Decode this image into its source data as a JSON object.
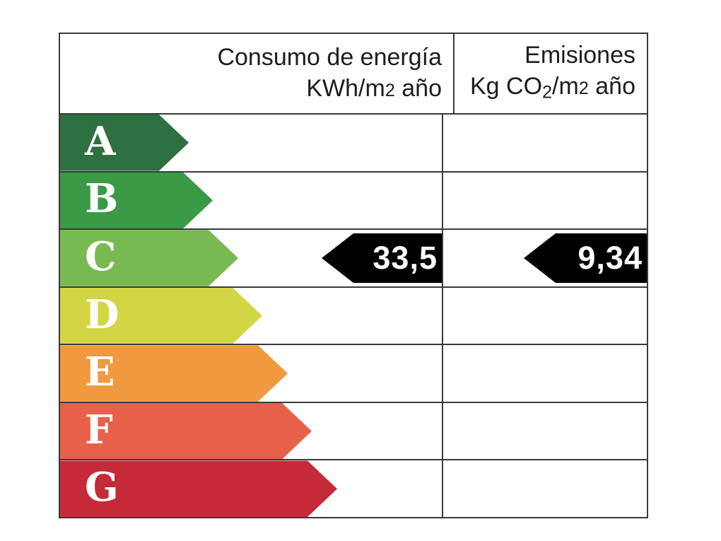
{
  "table": {
    "border_color": "#3a3a3a",
    "header": {
      "energy_col": {
        "title": "Consumo de energía",
        "unit_prefix": "KWh/m",
        "unit_sup": "2",
        "unit_suffix": " año"
      },
      "emissions_col": {
        "title": "Emisiones",
        "unit_prefix": "Kg CO",
        "unit_sub": "2",
        "unit_mid": "/m",
        "unit_sup": "2",
        "unit_suffix": " año"
      }
    },
    "ratings": [
      {
        "letter": "A",
        "color": "#2e7040",
        "arrow_width": 182
      },
      {
        "letter": "B",
        "color": "#3a9a46",
        "arrow_width": 216
      },
      {
        "letter": "C",
        "color": "#79b951",
        "arrow_width": 252
      },
      {
        "letter": "D",
        "color": "#d4d545",
        "arrow_width": 286
      },
      {
        "letter": "E",
        "color": "#f0993f",
        "arrow_width": 322
      },
      {
        "letter": "F",
        "color": "#e7604a",
        "arrow_width": 356
      },
      {
        "letter": "G",
        "color": "#c52a38",
        "arrow_width": 392
      }
    ],
    "values": {
      "rating_letter": "C",
      "consumption": "33,5",
      "emissions": "9,34",
      "marker_color": "#000000",
      "marker_text_color": "#ffffff"
    }
  },
  "chart_data": {
    "type": "table",
    "title": "Energy efficiency rating label",
    "columns": [
      "Consumo de energía KWh/m2 año",
      "Emisiones Kg CO2/m2 año"
    ],
    "rating_scale": [
      "A",
      "B",
      "C",
      "D",
      "E",
      "F",
      "G"
    ],
    "rating_colors": [
      "#2e7040",
      "#3a9a46",
      "#79b951",
      "#d4d545",
      "#f0993f",
      "#e7604a",
      "#c52a38"
    ],
    "current_rating": "C",
    "consumption_kwh_m2_year": 33.5,
    "emissions_kg_co2_m2_year": 9.34
  }
}
